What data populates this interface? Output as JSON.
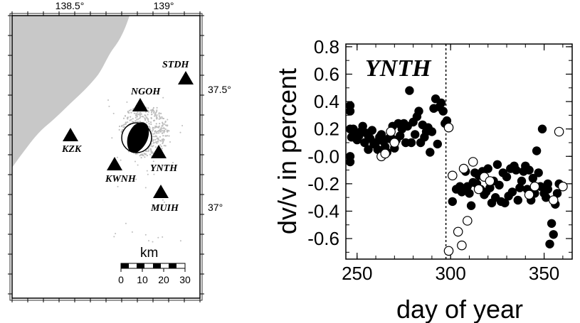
{
  "map": {
    "lon_ticks": [
      "138.5°",
      "139°"
    ],
    "lat_ticks": [
      "37.5°",
      "37°"
    ],
    "stations": [
      {
        "name": "STDH"
      },
      {
        "name": "NGOH"
      },
      {
        "name": "KZK"
      },
      {
        "name": "YNTH"
      },
      {
        "name": "KWNH"
      },
      {
        "name": "MUIH"
      }
    ],
    "scale_bar": {
      "unit": "km",
      "ticks": [
        "0",
        "10",
        "20",
        "30"
      ]
    },
    "colors": {
      "land": "#c8c8c8",
      "aftershocks": "#bdbdbd",
      "station": "#000000"
    }
  },
  "chart_data": {
    "type": "scatter",
    "title": "YNTH",
    "xlabel": "day of year",
    "ylabel": "dv/v in percent",
    "xlim": [
      244,
      365
    ],
    "ylim": [
      -0.75,
      0.82
    ],
    "xticks": [
      250,
      300,
      350
    ],
    "yticks": [
      0.8,
      0.6,
      0.4,
      0.2,
      0.0,
      -0.2,
      -0.4,
      -0.6
    ],
    "ytick_labels": [
      "0.8",
      "0.6",
      "0.4",
      "0.2",
      "-0.0",
      "-0.2",
      "-0.4",
      "-0.6"
    ],
    "event_line_x": 297.5,
    "grid": false,
    "series": [
      {
        "marker": "filled",
        "color": "#000000",
        "points": [
          [
            244,
            0.37
          ],
          [
            245,
            0.2
          ],
          [
            246,
            0.33
          ],
          [
            247,
            0.14
          ],
          [
            248,
            0.2
          ],
          [
            249,
            0.17
          ],
          [
            250,
            0.12
          ],
          [
            251,
            0.15
          ],
          [
            252,
            0.18
          ],
          [
            253,
            0.22
          ],
          [
            254,
            0.1
          ],
          [
            255,
            0.17
          ],
          [
            256,
            0.15
          ],
          [
            257,
            0.13
          ],
          [
            258,
            0.19
          ],
          [
            259,
            0.09
          ],
          [
            260,
            0.1
          ],
          [
            261,
            0.05
          ],
          [
            262,
            0.14
          ],
          [
            263,
            0.16
          ],
          [
            264,
            0.11
          ],
          [
            265,
            0.07
          ],
          [
            266,
            0.03
          ],
          [
            267,
            0.13
          ],
          [
            268,
            0.14
          ],
          [
            269,
            0.22
          ],
          [
            270,
            0.06
          ],
          [
            271,
            0.12
          ],
          [
            272,
            0.24
          ],
          [
            273,
            0.15
          ],
          [
            274,
            0.2
          ],
          [
            275,
            0.24
          ],
          [
            276,
            0.1
          ],
          [
            277,
            0.22
          ],
          [
            278,
            0.48
          ],
          [
            279,
            0.1
          ],
          [
            280,
            0.25
          ],
          [
            281,
            0.16
          ],
          [
            282,
            0.29
          ],
          [
            283,
            0.33
          ],
          [
            284,
            0.1
          ],
          [
            285,
            0.23
          ],
          [
            286,
            0.14
          ],
          [
            287,
            0.18
          ],
          [
            288,
            0.21
          ],
          [
            289,
            0.03
          ],
          [
            290,
            0.18
          ],
          [
            291,
            0.35
          ],
          [
            292,
            0.42
          ],
          [
            293,
            0.09
          ],
          [
            294,
            0.36
          ],
          [
            295,
            0.39
          ],
          [
            296,
            0.33
          ],
          [
            297,
            0.24
          ],
          [
            298,
            0.26
          ],
          [
            299,
            0.21
          ],
          [
            246,
            0.0
          ],
          [
            243,
            -0.04
          ],
          [
            256,
            0.05
          ],
          [
            301,
            -0.33
          ],
          [
            303,
            -0.24
          ],
          [
            305,
            -0.22
          ],
          [
            306,
            -0.26
          ],
          [
            308,
            -0.11
          ],
          [
            309,
            -0.22
          ],
          [
            310,
            -0.27
          ],
          [
            311,
            -0.36
          ],
          [
            312,
            -0.19
          ],
          [
            313,
            -0.12
          ],
          [
            314,
            -0.2
          ],
          [
            315,
            -0.14
          ],
          [
            316,
            -0.24
          ],
          [
            317,
            -0.11
          ],
          [
            318,
            -0.28
          ],
          [
            319,
            -0.26
          ],
          [
            320,
            -0.09
          ],
          [
            321,
            -0.23
          ],
          [
            322,
            -0.34
          ],
          [
            323,
            -0.18
          ],
          [
            324,
            -0.3
          ],
          [
            325,
            -0.06
          ],
          [
            326,
            -0.21
          ],
          [
            327,
            -0.33
          ],
          [
            328,
            -0.12
          ],
          [
            329,
            -0.34
          ],
          [
            330,
            -0.15
          ],
          [
            331,
            -0.29
          ],
          [
            332,
            -0.09
          ],
          [
            333,
            -0.26
          ],
          [
            334,
            -0.07
          ],
          [
            335,
            -0.1
          ],
          [
            336,
            -0.32
          ],
          [
            337,
            -0.23
          ],
          [
            338,
            -0.18
          ],
          [
            339,
            -0.11
          ],
          [
            340,
            -0.07
          ],
          [
            341,
            -0.24
          ],
          [
            342,
            -0.1
          ],
          [
            343,
            -0.32
          ],
          [
            344,
            -0.16
          ],
          [
            345,
            -0.27
          ],
          [
            346,
            0.04
          ],
          [
            347,
            -0.12
          ],
          [
            348,
            -0.22
          ],
          [
            349,
            0.2
          ],
          [
            350,
            -0.27
          ],
          [
            351,
            -0.3
          ],
          [
            352,
            -0.2
          ],
          [
            353,
            -0.64
          ],
          [
            354,
            -0.49
          ],
          [
            355,
            -0.57
          ],
          [
            356,
            -0.35
          ],
          [
            357,
            -0.27
          ],
          [
            358,
            -0.2
          ],
          [
            352,
            -0.24
          ]
        ]
      },
      {
        "marker": "open",
        "color": "#000000",
        "points": [
          [
            263,
            0.0
          ],
          [
            265,
            0.02
          ],
          [
            268,
            0.18
          ],
          [
            270,
            0.1
          ],
          [
            299,
            0.21
          ],
          [
            301,
            -0.14
          ],
          [
            304,
            -0.55
          ],
          [
            306,
            -0.65
          ],
          [
            307,
            -0.09
          ],
          [
            309,
            -0.47
          ],
          [
            312,
            -0.04
          ],
          [
            315,
            -0.24
          ],
          [
            318,
            -0.15
          ],
          [
            321,
            -0.18
          ],
          [
            342,
            -0.28
          ],
          [
            345,
            -0.22
          ],
          [
            355,
            -0.32
          ],
          [
            358,
            0.18
          ],
          [
            360,
            -0.22
          ],
          [
            299,
            -0.69
          ]
        ]
      }
    ]
  }
}
